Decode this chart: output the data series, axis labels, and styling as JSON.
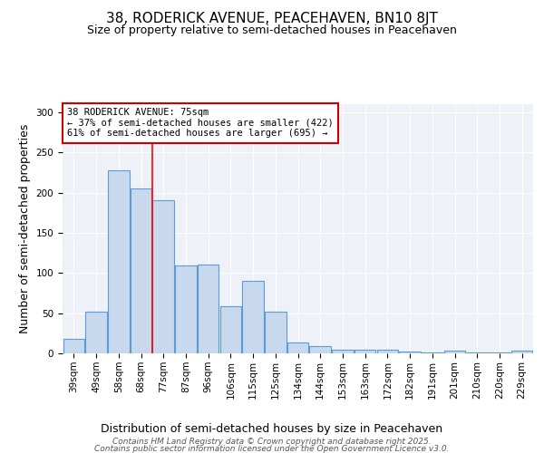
{
  "title": "38, RODERICK AVENUE, PEACEHAVEN, BN10 8JT",
  "subtitle": "Size of property relative to semi-detached houses in Peacehaven",
  "xlabel": "Distribution of semi-detached houses by size in Peacehaven",
  "ylabel": "Number of semi-detached properties",
  "categories": [
    "39sqm",
    "49sqm",
    "58sqm",
    "68sqm",
    "77sqm",
    "87sqm",
    "96sqm",
    "106sqm",
    "115sqm",
    "125sqm",
    "134sqm",
    "144sqm",
    "153sqm",
    "163sqm",
    "172sqm",
    "182sqm",
    "191sqm",
    "201sqm",
    "210sqm",
    "220sqm",
    "229sqm"
  ],
  "values": [
    18,
    52,
    228,
    205,
    190,
    109,
    110,
    59,
    90,
    52,
    14,
    9,
    5,
    5,
    4,
    2,
    1,
    3,
    1,
    1,
    3
  ],
  "bar_color": "#c8d9ee",
  "bar_edge_color": "#5b9bd5",
  "red_line_index": 4,
  "annotation_line1": "38 RODERICK AVENUE: 75sqm",
  "annotation_line2": "← 37% of semi-detached houses are smaller (422)",
  "annotation_line3": "61% of semi-detached houses are larger (695) →",
  "annotation_box_color": "#ffffff",
  "annotation_box_edge_color": "#cc0000",
  "ylim": [
    0,
    310
  ],
  "yticks": [
    0,
    50,
    100,
    150,
    200,
    250,
    300
  ],
  "footer_line1": "Contains HM Land Registry data © Crown copyright and database right 2025.",
  "footer_line2": "Contains public sector information licensed under the Open Government Licence v3.0.",
  "title_fontsize": 11,
  "subtitle_fontsize": 9,
  "axis_label_fontsize": 9,
  "tick_fontsize": 7.5,
  "annotation_fontsize": 7.5,
  "footer_fontsize": 6.5,
  "bg_color": "#ffffff",
  "plot_bg_color": "#eef2f8"
}
